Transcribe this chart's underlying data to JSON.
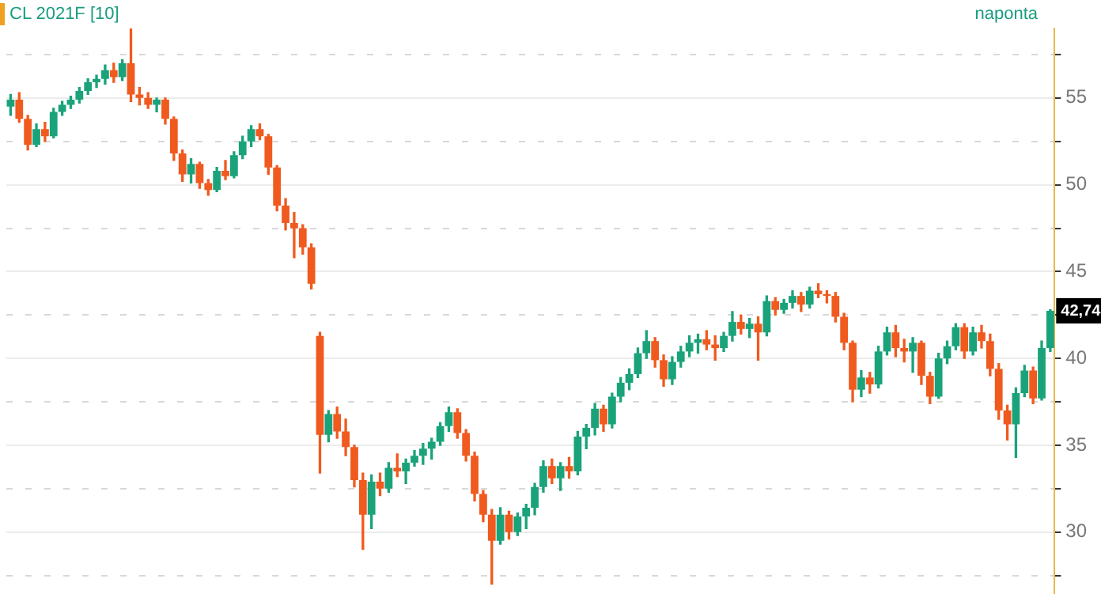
{
  "chart_data": {
    "type": "candlestick",
    "title": "CL 2021F [10]",
    "annotations": [
      "naponta",
      {
        "text": "42,74",
        "y": 42.74
      }
    ],
    "categories": [
      null,
      null,
      null,
      null,
      null,
      null,
      null,
      null,
      null,
      null,
      null,
      null,
      null,
      null,
      null,
      null,
      null,
      null,
      null,
      null,
      null,
      null,
      null,
      null,
      null,
      null,
      null,
      null,
      null,
      null,
      null,
      null,
      null,
      null,
      null,
      null,
      null,
      null,
      null,
      null,
      null,
      null,
      null,
      null,
      null,
      null,
      null,
      null,
      null,
      null,
      null,
      null,
      null,
      null,
      null,
      null,
      null,
      null,
      null,
      null,
      null,
      null,
      null,
      null,
      null,
      null,
      null,
      null,
      null,
      null,
      null,
      null,
      null,
      null,
      null,
      null,
      null,
      null,
      null,
      null,
      null,
      null,
      null,
      null,
      null,
      null,
      null,
      null,
      null,
      null,
      null,
      null,
      null,
      null,
      null,
      null,
      null,
      null,
      null,
      null,
      null,
      null,
      null,
      null,
      null,
      null,
      null,
      null,
      null,
      null,
      null,
      null,
      null,
      null,
      null,
      null,
      null,
      null,
      null,
      null,
      null,
      null
    ],
    "ohlc": [
      [
        54.5,
        55.2,
        54.0,
        54.9
      ],
      [
        54.9,
        55.3,
        53.6,
        53.8
      ],
      [
        53.8,
        54.0,
        52.0,
        52.3
      ],
      [
        52.3,
        53.5,
        52.2,
        53.2
      ],
      [
        53.2,
        53.6,
        52.5,
        52.8
      ],
      [
        52.8,
        54.4,
        52.7,
        54.2
      ],
      [
        54.2,
        54.8,
        54.0,
        54.6
      ],
      [
        54.6,
        55.1,
        54.4,
        54.9
      ],
      [
        54.9,
        55.6,
        54.7,
        55.4
      ],
      [
        55.4,
        56.1,
        55.2,
        55.9
      ],
      [
        55.9,
        56.3,
        55.6,
        56.1
      ],
      [
        56.1,
        56.9,
        55.8,
        56.6
      ],
      [
        56.6,
        57.0,
        55.9,
        56.2
      ],
      [
        56.2,
        57.2,
        56.0,
        57.0
      ],
      [
        57.0,
        59.1,
        54.8,
        55.2
      ],
      [
        55.2,
        55.6,
        54.6,
        55.0
      ],
      [
        55.0,
        55.3,
        54.4,
        54.6
      ],
      [
        54.6,
        55.0,
        54.2,
        54.9
      ],
      [
        54.9,
        55.0,
        53.5,
        53.8
      ],
      [
        53.8,
        53.9,
        51.4,
        51.8
      ],
      [
        51.8,
        52.0,
        50.2,
        50.6
      ],
      [
        50.6,
        51.5,
        50.1,
        51.2
      ],
      [
        51.2,
        51.3,
        49.8,
        50.1
      ],
      [
        50.1,
        50.3,
        49.4,
        49.7
      ],
      [
        49.7,
        51.0,
        49.6,
        50.8
      ],
      [
        50.8,
        51.4,
        50.3,
        50.5
      ],
      [
        50.5,
        51.9,
        50.4,
        51.7
      ],
      [
        51.7,
        52.8,
        51.5,
        52.5
      ],
      [
        52.5,
        53.4,
        52.2,
        53.2
      ],
      [
        53.2,
        53.5,
        52.6,
        52.8
      ],
      [
        52.8,
        52.9,
        50.6,
        51.0
      ],
      [
        51.0,
        51.1,
        48.5,
        48.8
      ],
      [
        48.8,
        49.2,
        47.4,
        47.8
      ],
      [
        47.8,
        48.4,
        45.8,
        47.5
      ],
      [
        47.5,
        47.7,
        46.0,
        46.4
      ],
      [
        46.4,
        46.6,
        44.0,
        44.3
      ],
      [
        41.3,
        41.5,
        33.4,
        35.6
      ],
      [
        35.6,
        37.0,
        35.2,
        36.8
      ],
      [
        36.8,
        37.2,
        35.4,
        35.8
      ],
      [
        35.8,
        36.5,
        34.4,
        34.9
      ],
      [
        34.9,
        35.0,
        32.6,
        33.0
      ],
      [
        33.0,
        33.4,
        29.0,
        31.0
      ],
      [
        31.0,
        33.3,
        30.2,
        32.9
      ],
      [
        32.9,
        33.4,
        32.1,
        32.5
      ],
      [
        32.5,
        34.0,
        32.3,
        33.7
      ],
      [
        33.7,
        34.5,
        33.2,
        33.5
      ],
      [
        33.5,
        34.2,
        32.8,
        34.0
      ],
      [
        34.0,
        34.7,
        33.8,
        34.4
      ],
      [
        34.4,
        35.1,
        33.9,
        34.8
      ],
      [
        34.8,
        35.4,
        34.2,
        35.2
      ],
      [
        35.2,
        36.3,
        35.0,
        36.1
      ],
      [
        36.1,
        37.2,
        35.8,
        36.9
      ],
      [
        36.9,
        37.1,
        35.4,
        35.7
      ],
      [
        35.7,
        35.9,
        34.1,
        34.4
      ],
      [
        34.4,
        34.6,
        31.8,
        32.2
      ],
      [
        32.2,
        32.4,
        30.6,
        31.0
      ],
      [
        31.0,
        31.3,
        27.0,
        29.5
      ],
      [
        29.5,
        31.4,
        29.3,
        31.0
      ],
      [
        31.0,
        31.2,
        29.6,
        30.0
      ],
      [
        30.0,
        31.1,
        29.8,
        30.9
      ],
      [
        30.9,
        31.6,
        30.2,
        31.4
      ],
      [
        31.4,
        32.8,
        31.0,
        32.6
      ],
      [
        32.6,
        34.1,
        32.3,
        33.8
      ],
      [
        33.8,
        34.2,
        32.8,
        33.1
      ],
      [
        33.1,
        34.0,
        32.4,
        33.8
      ],
      [
        33.8,
        34.3,
        33.1,
        33.5
      ],
      [
        33.5,
        35.8,
        33.3,
        35.5
      ],
      [
        35.5,
        36.2,
        34.8,
        36.0
      ],
      [
        36.0,
        37.4,
        35.6,
        37.1
      ],
      [
        37.1,
        37.3,
        35.8,
        36.2
      ],
      [
        36.2,
        38.0,
        36.0,
        37.8
      ],
      [
        37.8,
        38.9,
        37.5,
        38.6
      ],
      [
        38.6,
        39.4,
        38.2,
        39.1
      ],
      [
        39.1,
        40.6,
        38.9,
        40.3
      ],
      [
        40.3,
        41.6,
        40.0,
        41.0
      ],
      [
        41.0,
        41.2,
        39.5,
        39.9
      ],
      [
        39.9,
        40.2,
        38.4,
        38.8
      ],
      [
        38.8,
        40.1,
        38.5,
        39.8
      ],
      [
        39.8,
        40.7,
        39.5,
        40.4
      ],
      [
        40.4,
        41.3,
        40.1,
        40.9
      ],
      [
        40.9,
        41.4,
        40.3,
        41.1
      ],
      [
        41.1,
        41.6,
        40.5,
        40.8
      ],
      [
        40.8,
        41.3,
        39.9,
        40.6
      ],
      [
        40.6,
        41.5,
        40.4,
        41.3
      ],
      [
        41.3,
        42.7,
        41.0,
        42.1
      ],
      [
        42.1,
        42.5,
        41.4,
        41.7
      ],
      [
        41.7,
        42.3,
        41.2,
        42.0
      ],
      [
        42.0,
        42.4,
        39.9,
        41.5
      ],
      [
        41.5,
        43.6,
        41.3,
        43.3
      ],
      [
        43.3,
        43.5,
        42.5,
        42.8
      ],
      [
        42.8,
        43.4,
        42.6,
        43.2
      ],
      [
        43.2,
        43.9,
        42.9,
        43.6
      ],
      [
        43.6,
        43.8,
        42.7,
        43.1
      ],
      [
        43.1,
        44.1,
        42.9,
        43.9
      ],
      [
        43.9,
        44.3,
        43.5,
        43.7
      ],
      [
        43.7,
        43.9,
        43.2,
        43.6
      ],
      [
        43.6,
        43.8,
        42.1,
        42.4
      ],
      [
        42.4,
        42.6,
        40.5,
        40.9
      ],
      [
        40.9,
        41.0,
        37.5,
        38.2
      ],
      [
        38.2,
        39.3,
        37.8,
        38.9
      ],
      [
        38.9,
        39.2,
        38.0,
        38.5
      ],
      [
        38.5,
        40.7,
        38.3,
        40.4
      ],
      [
        40.4,
        41.8,
        40.2,
        41.5
      ],
      [
        41.5,
        41.9,
        40.1,
        40.6
      ],
      [
        40.6,
        41.1,
        39.8,
        40.4
      ],
      [
        40.4,
        41.2,
        39.2,
        40.9
      ],
      [
        40.9,
        41.0,
        38.5,
        39.0
      ],
      [
        39.0,
        39.2,
        37.4,
        37.8
      ],
      [
        37.8,
        40.3,
        37.7,
        40.0
      ],
      [
        40.0,
        41.0,
        39.7,
        40.7
      ],
      [
        40.7,
        42.0,
        40.5,
        41.8
      ],
      [
        41.8,
        42.0,
        40.0,
        40.4
      ],
      [
        40.4,
        41.8,
        40.2,
        41.5
      ],
      [
        41.5,
        41.9,
        40.6,
        41.0
      ],
      [
        41.0,
        41.4,
        39.0,
        39.4
      ],
      [
        39.4,
        39.7,
        36.5,
        37.0
      ],
      [
        37.0,
        37.3,
        35.3,
        36.2
      ],
      [
        36.2,
        38.3,
        34.3,
        38.0
      ],
      [
        38.0,
        39.6,
        37.8,
        39.3
      ],
      [
        39.3,
        39.5,
        37.4,
        37.7
      ],
      [
        37.7,
        41.0,
        37.6,
        40.6
      ],
      [
        40.6,
        42.8,
        40.4,
        42.74
      ]
    ],
    "colors": [
      "#1aa37a",
      "#f05a1e",
      "#f05a1e",
      "#1aa37a",
      "#f05a1e",
      "#1aa37a",
      "#1aa37a",
      "#1aa37a",
      "#1aa37a",
      "#1aa37a",
      "#1aa37a",
      "#1aa37a",
      "#f05a1e",
      "#1aa37a",
      "#f05a1e",
      "#f05a1e",
      "#f05a1e",
      "#1aa37a",
      "#f05a1e",
      "#f05a1e",
      "#f05a1e",
      "#1aa37a",
      "#f05a1e",
      "#f05a1e",
      "#1aa37a",
      "#f05a1e",
      "#1aa37a",
      "#1aa37a",
      "#1aa37a",
      "#f05a1e",
      "#f05a1e",
      "#f05a1e",
      "#f05a1e",
      "#f05a1e",
      "#f05a1e",
      "#f05a1e",
      "#f05a1e",
      "#1aa37a",
      "#f05a1e",
      "#f05a1e",
      "#f05a1e",
      "#f05a1e",
      "#1aa37a",
      "#f05a1e",
      "#1aa37a",
      "#f05a1e",
      "#1aa37a",
      "#1aa37a",
      "#1aa37a",
      "#1aa37a",
      "#1aa37a",
      "#1aa37a",
      "#f05a1e",
      "#f05a1e",
      "#f05a1e",
      "#f05a1e",
      "#f05a1e",
      "#1aa37a",
      "#f05a1e",
      "#1aa37a",
      "#1aa37a",
      "#1aa37a",
      "#1aa37a",
      "#f05a1e",
      "#1aa37a",
      "#f05a1e",
      "#1aa37a",
      "#1aa37a",
      "#1aa37a",
      "#f05a1e",
      "#1aa37a",
      "#1aa37a",
      "#1aa37a",
      "#1aa37a",
      "#1aa37a",
      "#f05a1e",
      "#f05a1e",
      "#1aa37a",
      "#1aa37a",
      "#1aa37a",
      "#1aa37a",
      "#f05a1e",
      "#f05a1e",
      "#1aa37a",
      "#1aa37a",
      "#f05a1e",
      "#1aa37a",
      "#f05a1e",
      "#1aa37a",
      "#f05a1e",
      "#1aa37a",
      "#1aa37a",
      "#f05a1e",
      "#1aa37a",
      "#f05a1e",
      "#f05a1e",
      "#f05a1e",
      "#f05a1e",
      "#f05a1e",
      "#1aa37a",
      "#f05a1e",
      "#1aa37a",
      "#1aa37a",
      "#f05a1e",
      "#f05a1e",
      "#1aa37a",
      "#f05a1e",
      "#f05a1e",
      "#1aa37a",
      "#1aa37a",
      "#1aa37a",
      "#f05a1e",
      "#1aa37a",
      "#f05a1e",
      "#f05a1e",
      "#f05a1e",
      "#f05a1e",
      "#1aa37a",
      "#1aa37a",
      "#f05a1e",
      "#1aa37a",
      "#1aa37a"
    ],
    "ylim": [
      26.5,
      59
    ],
    "yticks": [
      {
        "value": 27.5,
        "label": null
      },
      30,
      {
        "value": 32.5,
        "label": null
      },
      35,
      {
        "value": 37.5,
        "label": null
      },
      40,
      {
        "value": 42.5,
        "label": null
      },
      45,
      {
        "value": 47.5,
        "label": null
      },
      50,
      {
        "value": 52.5,
        "label": null
      },
      55,
      {
        "value": 57.5,
        "label": null
      }
    ],
    "grid": true,
    "legend": false,
    "tick_labels": "y"
  }
}
